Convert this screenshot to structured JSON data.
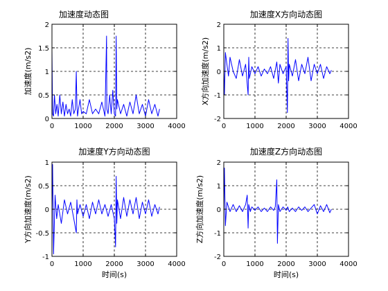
{
  "figure": {
    "background": "#ffffff"
  },
  "chart_data": [
    {
      "type": "line",
      "title": "加速度动态图",
      "xlabel": "",
      "ylabel": "加速度(m/s2)",
      "xlim": [
        0,
        4000
      ],
      "ylim": [
        0,
        2
      ],
      "xticks": [
        "0",
        "1000",
        "2000",
        "3000",
        "4000"
      ],
      "yticks": [
        "0",
        "0.5",
        "1",
        "1.5",
        "2"
      ],
      "grid": true,
      "series": [
        {
          "color": "#0000ff",
          "x": [
            0,
            20,
            50,
            80,
            120,
            160,
            200,
            250,
            300,
            350,
            400,
            450,
            500,
            550,
            600,
            650,
            700,
            750,
            780,
            800,
            820,
            850,
            900,
            950,
            1000,
            1100,
            1200,
            1300,
            1400,
            1500,
            1600,
            1700,
            1750,
            1760,
            1800,
            1850,
            1900,
            1950,
            2000,
            2040,
            2060,
            2080,
            2100,
            2200,
            2300,
            2400,
            2500,
            2600,
            2700,
            2800,
            2900,
            3000,
            3100,
            3200,
            3300,
            3400,
            3450
          ],
          "values": [
            1.45,
            0.1,
            0.05,
            0.5,
            0.1,
            0.3,
            0.05,
            0.5,
            0.1,
            0.35,
            0.05,
            0.3,
            0.1,
            0.2,
            0.05,
            0.4,
            0.1,
            0.2,
            1.0,
            0.3,
            0.05,
            0.2,
            0.4,
            0.1,
            0.15,
            0.1,
            0.4,
            0.1,
            0.2,
            0.1,
            0.35,
            0.05,
            1.75,
            0.2,
            0.1,
            0.5,
            0.1,
            0.6,
            0.1,
            0.05,
            1.75,
            0.2,
            0.4,
            0.1,
            0.3,
            0.05,
            0.35,
            0.1,
            0.5,
            0.1,
            0.3,
            0.05,
            0.4,
            0.1,
            0.3,
            0.05,
            0.2
          ]
        }
      ]
    },
    {
      "type": "line",
      "title": "加速度X方向动态图",
      "xlabel": "",
      "ylabel": "X方向加速度(m/s2)",
      "xlim": [
        0,
        4000
      ],
      "ylim": [
        -2,
        2
      ],
      "xticks": [
        "0",
        "1000",
        "2000",
        "3000",
        "4000"
      ],
      "yticks": [
        "-2",
        "-1",
        "0",
        "1",
        "2"
      ],
      "grid": true,
      "series": [
        {
          "color": "#0000ff",
          "x": [
            0,
            20,
            50,
            100,
            150,
            200,
            300,
            400,
            500,
            600,
            700,
            780,
            800,
            820,
            900,
            1000,
            1100,
            1200,
            1300,
            1400,
            1500,
            1600,
            1700,
            1750,
            1800,
            1900,
            2000,
            2040,
            2060,
            2080,
            2100,
            2200,
            2300,
            2400,
            2500,
            2600,
            2700,
            2800,
            2900,
            3000,
            3100,
            3200,
            3300,
            3400,
            3450
          ],
          "values": [
            0.0,
            -1.0,
            0.8,
            0.3,
            -0.2,
            0.6,
            0.0,
            -0.3,
            0.5,
            -0.2,
            0.3,
            -1.0,
            0.6,
            -0.3,
            0.2,
            -0.1,
            0.2,
            -0.2,
            0.1,
            -0.1,
            0.2,
            -0.3,
            0.4,
            -0.5,
            0.3,
            -0.1,
            0.2,
            -1.75,
            1.4,
            -0.4,
            0.3,
            -0.2,
            0.5,
            -0.4,
            0.3,
            -0.1,
            0.6,
            -0.4,
            0.3,
            -0.1,
            0.3,
            -0.3,
            0.2,
            -0.1,
            0.05
          ]
        }
      ]
    },
    {
      "type": "line",
      "title": "加速度Y方向动态图",
      "xlabel": "时间(s)",
      "ylabel": "Y方向加速度(m/s2)",
      "xlim": [
        0,
        4000
      ],
      "ylim": [
        -1,
        1
      ],
      "xticks": [
        "0",
        "1000",
        "2000",
        "3000",
        "4000"
      ],
      "yticks": [
        "-1",
        "-0.5",
        "0",
        "0.5",
        "1"
      ],
      "grid": true,
      "series": [
        {
          "color": "#0000ff",
          "x": [
            0,
            20,
            50,
            100,
            150,
            200,
            300,
            400,
            500,
            600,
            700,
            780,
            800,
            820,
            900,
            1000,
            1100,
            1200,
            1300,
            1400,
            1500,
            1600,
            1700,
            1800,
            1900,
            2000,
            2040,
            2060,
            2080,
            2100,
            2200,
            2300,
            2400,
            2500,
            2600,
            2700,
            2800,
            2900,
            3000,
            3100,
            3200,
            3300,
            3400,
            3450
          ],
          "values": [
            0.0,
            0.95,
            -0.95,
            0.3,
            -0.2,
            0.1,
            -0.3,
            0.2,
            -0.1,
            0.15,
            -0.2,
            -0.5,
            0.2,
            -0.1,
            0.1,
            -0.15,
            0.1,
            -0.2,
            0.15,
            -0.1,
            0.2,
            -0.1,
            0.1,
            -0.15,
            0.1,
            -0.2,
            -0.8,
            0.7,
            -0.3,
            0.2,
            -0.2,
            0.25,
            -0.15,
            0.2,
            -0.1,
            0.25,
            -0.2,
            0.15,
            -0.1,
            0.2,
            -0.15,
            0.1,
            -0.1,
            0.05
          ]
        }
      ]
    },
    {
      "type": "line",
      "title": "加速度Z方向动态图",
      "xlabel": "时间(s)",
      "ylabel": "Z方向加速度(m/s2)",
      "xlim": [
        0,
        4000
      ],
      "ylim": [
        -2,
        2
      ],
      "xticks": [
        "0",
        "1000",
        "2000",
        "3000",
        "4000"
      ],
      "yticks": [
        "-2",
        "-1",
        "0",
        "1",
        "2"
      ],
      "grid": true,
      "series": [
        {
          "color": "#0000ff",
          "x": [
            0,
            20,
            50,
            100,
            200,
            300,
            400,
            500,
            600,
            700,
            750,
            780,
            800,
            850,
            900,
            1000,
            1100,
            1200,
            1300,
            1400,
            1500,
            1600,
            1650,
            1700,
            1720,
            1750,
            1800,
            1900,
            2000,
            2050,
            2100,
            2200,
            2300,
            2400,
            2500,
            2600,
            2700,
            2800,
            2900,
            3000,
            3100,
            3200,
            3300,
            3400,
            3450
          ],
          "values": [
            0.0,
            1.75,
            -0.7,
            0.3,
            -0.1,
            0.2,
            -0.1,
            0.15,
            -0.1,
            0.2,
            0.6,
            -0.8,
            0.2,
            -0.1,
            0.1,
            -0.05,
            0.1,
            -0.1,
            0.05,
            -0.1,
            0.1,
            -0.05,
            0.1,
            1.25,
            -1.45,
            0.2,
            -0.1,
            0.1,
            -0.05,
            0.1,
            -0.1,
            0.05,
            -0.1,
            0.1,
            -0.05,
            0.1,
            -0.1,
            0.05,
            0.2,
            -0.2,
            0.15,
            -0.1,
            0.2,
            -0.15,
            0.0
          ]
        }
      ]
    }
  ]
}
